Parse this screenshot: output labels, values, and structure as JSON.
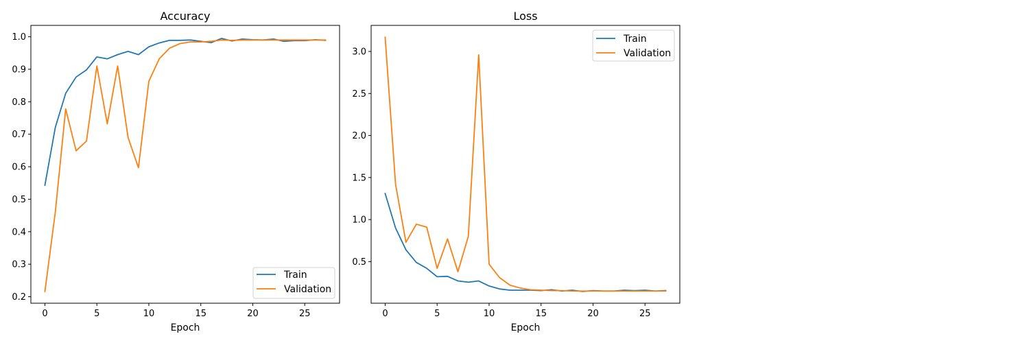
{
  "chart_data": [
    {
      "type": "line",
      "title": "Accuracy",
      "xlabel": "Epoch",
      "ylabel": "",
      "xlim": [
        -1.35,
        28.35
      ],
      "ylim": [
        0.18,
        1.035
      ],
      "xticks": [
        0,
        5,
        10,
        15,
        20,
        25
      ],
      "yticks": [
        0.2,
        0.3,
        0.4,
        0.5,
        0.6,
        0.7,
        0.8,
        0.9,
        1.0
      ],
      "ytick_labels": [
        "0.2",
        "0.3",
        "0.4",
        "0.5",
        "0.6",
        "0.7",
        "0.8",
        "0.9",
        "1.0"
      ],
      "grid": false,
      "legend": "lower-right",
      "x": [
        0,
        1,
        2,
        3,
        4,
        5,
        6,
        7,
        8,
        9,
        10,
        11,
        12,
        13,
        14,
        15,
        16,
        17,
        18,
        19,
        20,
        21,
        22,
        23,
        24,
        25,
        26,
        27
      ],
      "series": [
        {
          "name": "Train",
          "color": "#1f77b4",
          "values": [
            0.543,
            0.721,
            0.826,
            0.876,
            0.898,
            0.938,
            0.932,
            0.945,
            0.955,
            0.945,
            0.969,
            0.981,
            0.989,
            0.989,
            0.99,
            0.986,
            0.982,
            0.995,
            0.987,
            0.993,
            0.991,
            0.99,
            0.993,
            0.986,
            0.988,
            0.988,
            0.991,
            0.989
          ]
        },
        {
          "name": "Validation",
          "color": "#ff7f0e",
          "values": [
            0.216,
            0.46,
            0.778,
            0.649,
            0.679,
            0.91,
            0.732,
            0.91,
            0.69,
            0.597,
            0.863,
            0.932,
            0.965,
            0.979,
            0.984,
            0.984,
            0.986,
            0.99,
            0.989,
            0.99,
            0.99,
            0.99,
            0.99,
            0.99,
            0.99,
            0.99,
            0.99,
            0.99
          ]
        }
      ]
    },
    {
      "type": "line",
      "title": "Loss",
      "xlabel": "Epoch",
      "ylabel": "",
      "xlim": [
        -1.35,
        28.35
      ],
      "ylim": [
        0.005,
        3.31
      ],
      "xticks": [
        0,
        5,
        10,
        15,
        20,
        25
      ],
      "yticks": [
        0.5,
        1.0,
        1.5,
        2.0,
        2.5,
        3.0
      ],
      "ytick_labels": [
        "0.5",
        "1.0",
        "1.5",
        "2.0",
        "2.5",
        "3.0"
      ],
      "grid": false,
      "legend": "upper-right",
      "x": [
        0,
        1,
        2,
        3,
        4,
        5,
        6,
        7,
        8,
        9,
        10,
        11,
        12,
        13,
        14,
        15,
        16,
        17,
        18,
        19,
        20,
        21,
        22,
        23,
        24,
        25,
        26,
        27
      ],
      "series": [
        {
          "name": "Train",
          "color": "#1f77b4",
          "values": [
            1.31,
            0.9,
            0.64,
            0.49,
            0.42,
            0.32,
            0.325,
            0.27,
            0.255,
            0.27,
            0.21,
            0.175,
            0.16,
            0.16,
            0.16,
            0.155,
            0.165,
            0.15,
            0.16,
            0.145,
            0.155,
            0.15,
            0.15,
            0.16,
            0.155,
            0.16,
            0.15,
            0.155
          ]
        },
        {
          "name": "Validation",
          "color": "#ff7f0e",
          "values": [
            3.17,
            1.42,
            0.73,
            0.945,
            0.91,
            0.42,
            0.77,
            0.38,
            0.8,
            2.96,
            0.47,
            0.31,
            0.22,
            0.185,
            0.165,
            0.16,
            0.155,
            0.155,
            0.15,
            0.15,
            0.15,
            0.15,
            0.15,
            0.15,
            0.15,
            0.15,
            0.15,
            0.15
          ]
        }
      ]
    }
  ]
}
